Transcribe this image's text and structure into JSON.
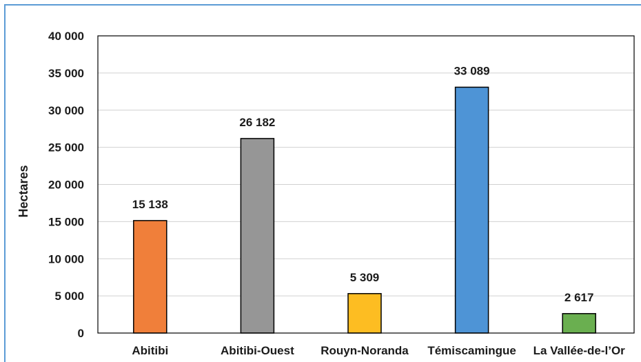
{
  "chart_data": {
    "type": "bar",
    "categories": [
      "Abitibi",
      "Abitibi-Ouest",
      "Rouyn-Noranda",
      "Témiscamingue",
      "La Vallée-de-l’Or"
    ],
    "values": [
      15138,
      26182,
      5309,
      33089,
      2617
    ],
    "value_labels": [
      "15 138",
      "26 182",
      "5 309",
      "33 089",
      "2 617"
    ],
    "colors": [
      "#f07f3a",
      "#969696",
      "#fdbd22",
      "#4e94d6",
      "#6aaf50"
    ],
    "ylabel": "Hectares",
    "ylim": [
      0,
      40000
    ],
    "y_ticks": [
      0,
      5000,
      10000,
      15000,
      20000,
      25000,
      30000,
      35000,
      40000
    ],
    "y_tick_labels": [
      "0",
      "5 000",
      "10 000",
      "15 000",
      "20 000",
      "25 000",
      "30 000",
      "35 000",
      "40 000"
    ],
    "grid": true
  }
}
